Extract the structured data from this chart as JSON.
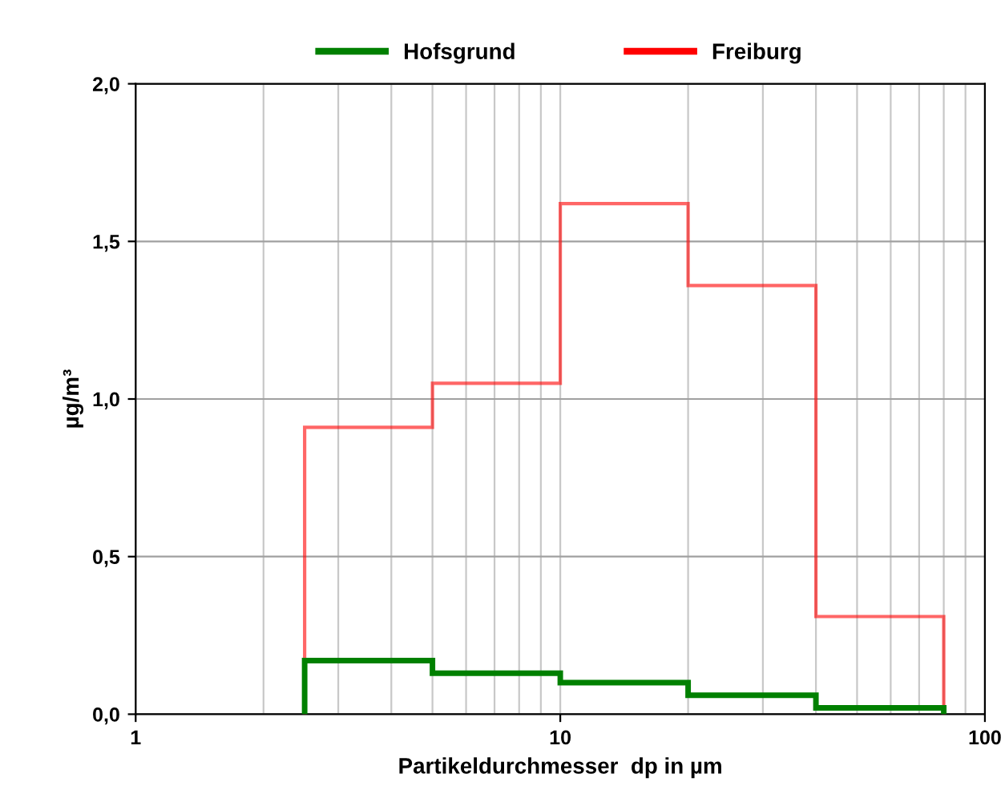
{
  "chart_data": {
    "type": "histogram",
    "xlabel": "Partikeldurchmesser  dp in µm",
    "ylabel": "µg/m³",
    "bins": [
      2.5,
      5,
      10,
      20,
      40,
      80
    ],
    "series": [
      {
        "name": "Hofsgrund",
        "color": "#008000",
        "values": [
          0.17,
          0.13,
          0.1,
          0.06,
          0.02
        ]
      },
      {
        "name": "Freiburg",
        "color": "#ff0000",
        "values": [
          0.91,
          1.05,
          1.62,
          1.36,
          0.31
        ]
      }
    ],
    "log": "x",
    "xlim": [
      1,
      100
    ],
    "xticks": [
      1,
      10,
      100
    ],
    "ylim": [
      0,
      2.0
    ],
    "yticks": [
      {
        "value": 0,
        "label": "0,0"
      },
      {
        "value": 0.5,
        "label": "0,5"
      },
      {
        "value": 1.0,
        "label": "1,0"
      },
      {
        "value": 1.5,
        "label": "1,5"
      },
      {
        "value": 2.0,
        "label": "2,0"
      }
    ],
    "grid": true,
    "legend": "top"
  }
}
